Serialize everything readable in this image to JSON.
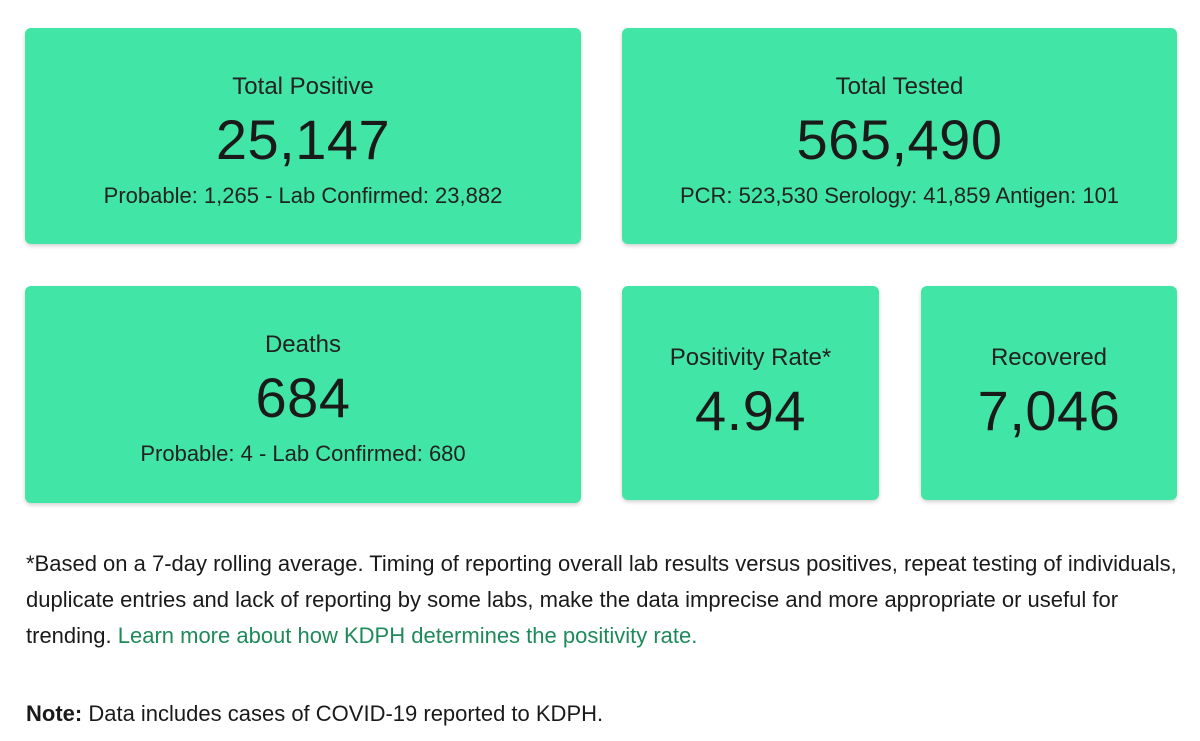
{
  "cards": {
    "total_positive": {
      "title": "Total Positive",
      "value": "25,147",
      "sub": "Probable: 1,265 - Lab Confirmed: 23,882"
    },
    "total_tested": {
      "title": "Total Tested",
      "value": "565,490",
      "sub": "PCR: 523,530 Serology: 41,859 Antigen: 101"
    },
    "deaths": {
      "title": "Deaths",
      "value": "684",
      "sub": "Probable: 4 - Lab Confirmed: 680"
    },
    "positivity_rate": {
      "title": "Positivity Rate*",
      "value": "4.94"
    },
    "recovered": {
      "title": "Recovered",
      "value": "7,046"
    }
  },
  "footnote": {
    "text": "*Based on a 7-day rolling average. Timing of reporting overall lab results versus positives, repeat testing of individuals, duplicate entries and lack of reporting by some labs, make the data imprecise and more appropriate or useful for trending. ",
    "link_text": "Learn more about how KDPH determines the positivity rate."
  },
  "note": {
    "label": "Note:",
    "text": " Data includes cases of COVID-19 reported to KDPH."
  },
  "colors": {
    "card_background": "#41e6a6",
    "link": "#1e8a5a",
    "text": "#1a1a1a"
  }
}
